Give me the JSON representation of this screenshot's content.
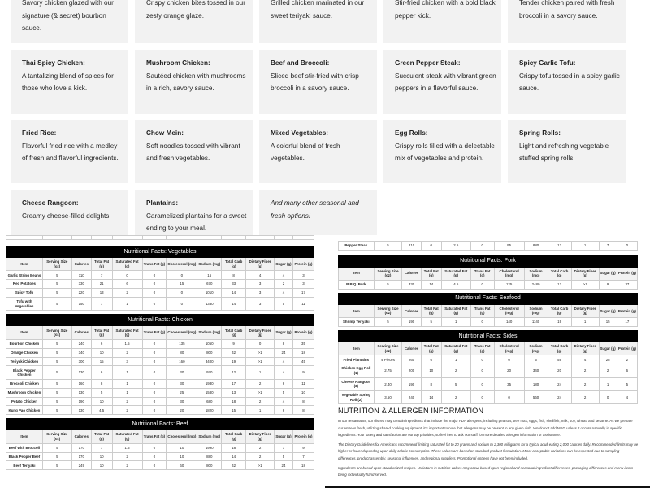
{
  "menu_cards": [
    {
      "title": "",
      "desc": "Savory chicken glazed with our signature (& secret) bourbon sauce."
    },
    {
      "title": "",
      "desc": "Crispy chicken bites tossed in our zesty orange glaze."
    },
    {
      "title": "",
      "desc": "Grilled chicken marinated in our sweet teriyaki sauce."
    },
    {
      "title": "",
      "desc": "Stir-fried chicken with a bold black pepper kick."
    },
    {
      "title": "",
      "desc": "Tender chicken paired with fresh broccoli in a savory sauce."
    },
    {
      "title": "Thai Spicy Chicken:",
      "desc": "A tantalizing blend of spices for those who love a kick."
    },
    {
      "title": "Mushroom Chicken:",
      "desc": "Sautéed chicken with mushrooms in a rich, savory sauce."
    },
    {
      "title": "Beef and Broccoli:",
      "desc": "Sliced beef stir-fried with crisp broccoli in a savory sauce."
    },
    {
      "title": "Green Pepper Steak:",
      "desc": "Succulent steak with vibrant green peppers in a flavorful sauce."
    },
    {
      "title": "Spicy Garlic Tofu:",
      "desc": "Crispy tofu tossed in a spicy garlic sauce."
    },
    {
      "title": "Fried Rice:",
      "desc": "Flavorful fried rice with a medley of fresh and flavorful ingredients."
    },
    {
      "title": "Chow Mein:",
      "desc": "Soft noodles tossed with vibrant and fresh vegetables."
    },
    {
      "title": "Mixed Vegetables:",
      "desc": "A colorful blend of fresh vegetables."
    },
    {
      "title": "Egg Rolls:",
      "desc": "Crispy rolls filled with a delectable mix of vegetables and protein."
    },
    {
      "title": "Spring Rolls:",
      "desc": "Light and refreshing vegetable stuffed spring rolls."
    },
    {
      "title": "Cheese Rangoon:",
      "desc": "Creamy cheese-filled delights."
    },
    {
      "title": "Plantains:",
      "desc": "Caramelized plantains for a sweet ending to your meal."
    },
    {
      "title": "",
      "desc": "And many other seasonal and fresh options!",
      "italic": true
    }
  ],
  "headers": [
    "Item",
    "Serving Size (oz)",
    "Calories",
    "Total Fat (g)",
    "Saturated Fat (g)",
    "Trans Fat (g)",
    "Cholesterol (mg)",
    "Sodium (mg)",
    "Total Carb (g)",
    "Dietary Fiber (g)",
    "Sugar (g)",
    "Protein (g)"
  ],
  "partial_rows": {
    "left": [
      "",
      "",
      "",
      "",
      "",
      "",
      "",
      "",
      "",
      "",
      "",
      ""
    ],
    "right": [
      "Pepper Steak",
      "5",
      "210",
      "0",
      "2.5",
      "0",
      "95",
      "880",
      "13",
      "1",
      "7",
      "0"
    ]
  },
  "tables": {
    "vegetables": {
      "title": "Nutritional Facts: Vegetables",
      "rows": [
        [
          "Garlic String Beans",
          "5",
          "110",
          "7",
          "0",
          "0",
          "0",
          "16",
          "8",
          "4",
          "4",
          "3"
        ],
        [
          "Red Potatoes",
          "5",
          "330",
          "21",
          "6",
          "0",
          "15",
          "670",
          "33",
          "3",
          "2",
          "3"
        ],
        [
          "Spicy Tofu",
          "5",
          "220",
          "13",
          "2",
          "0",
          "0",
          "1010",
          "14",
          "3",
          "4",
          "17"
        ],
        [
          "Tofu with Vegetables",
          "5",
          "150",
          "7",
          "1",
          "0",
          "0",
          "1330",
          "14",
          "3",
          "5",
          "11"
        ]
      ]
    },
    "chicken": {
      "title": "Nutritional Facts: Chicken",
      "rows": [
        [
          "Bourbon Chicken",
          "5",
          "240",
          "6",
          "1.5",
          "0",
          "135",
          "1050",
          "9",
          "0",
          "8",
          "35"
        ],
        [
          "Orange Chicken",
          "5",
          "340",
          "10",
          "2",
          "0",
          "80",
          "800",
          "42",
          ">1",
          "24",
          "18"
        ],
        [
          "Teriyaki Chicken",
          "5",
          "300",
          "15",
          "3",
          "0",
          "160",
          "3400",
          "19",
          ">1",
          "4",
          "45"
        ],
        [
          "Black Pepper Chicken",
          "5",
          "130",
          "6",
          "1",
          "0",
          "30",
          "970",
          "12",
          "1",
          "4",
          "9"
        ],
        [
          "Broccoli Chicken",
          "5",
          "160",
          "8",
          "1",
          "0",
          "30",
          "1930",
          "17",
          "2",
          "6",
          "11"
        ],
        [
          "Mushroom Chicken",
          "5",
          "130",
          "5",
          "1",
          "0",
          "25",
          "1580",
          "13",
          ">1",
          "5",
          "10"
        ],
        [
          "Potato Chicken",
          "5",
          "190",
          "10",
          "2",
          "0",
          "30",
          "680",
          "18",
          "2",
          "4",
          "8"
        ],
        [
          "Kung Pao Chicken",
          "5",
          "130",
          "4.5",
          "2",
          "0",
          "20",
          "1820",
          "15",
          "1",
          "6",
          "8"
        ]
      ]
    },
    "beef": {
      "title": "Nutritional Facts: Beef",
      "rows": [
        [
          "Beef with Broccoli",
          "5",
          "170",
          "7",
          "1.5",
          "0",
          "10",
          "1990",
          "18",
          "2",
          "7",
          "9"
        ],
        [
          "Black Pepper Beef",
          "5",
          "170",
          "10",
          "2",
          "0",
          "10",
          "880",
          "14",
          "2",
          "5",
          "7"
        ],
        [
          "Beef Teriyaki",
          "5",
          "249",
          "10",
          "2",
          "0",
          "60",
          "800",
          "42",
          ">1",
          "24",
          "18"
        ]
      ]
    },
    "pork": {
      "title": "Nutritional Facts: Pork",
      "rows": [
        [
          "B.B.Q. Pork",
          "5",
          "330",
          "14",
          "4.5",
          "0",
          "125",
          "2480",
          "12",
          ">1",
          "9",
          "37"
        ]
      ]
    },
    "seafood": {
      "title": "Nutritional Facts: Seafood",
      "rows": [
        [
          "Shrimp Teriyaki",
          "5",
          "190",
          "5",
          "1",
          "0",
          "140",
          "1140",
          "19",
          "1",
          "15",
          "17"
        ]
      ]
    },
    "sides": {
      "title": "Nutritional Facts: Sides",
      "rows": [
        [
          "Fried Plantains",
          "4 Pieces",
          "260",
          "6",
          "1",
          "0",
          "0",
          "5",
          "59",
          "4",
          "28",
          "2"
        ],
        [
          "Chicken Egg Roll (1)",
          "2.75",
          "200",
          "10",
          "2",
          "0",
          "20",
          "340",
          "20",
          "2",
          "2",
          "6"
        ],
        [
          "Cheese Rangoon (3)",
          "2.40",
          "190",
          "8",
          "5",
          "0",
          "35",
          "180",
          "24",
          "2",
          "1",
          "5"
        ],
        [
          "Vegetable Spring Roll (2)",
          "3.50",
          "240",
          "14",
          "2",
          "0",
          "0",
          "560",
          "24",
          "2",
          "0",
          "4"
        ]
      ]
    }
  },
  "info": {
    "heading": "NUTRITION & ALLERGEN INFORMATION",
    "p1": "In our restaurants, our dishes may contain ingredients that include the major FDA allergens, including peanuts, tree nuts, eggs, fish, shellfish, milk, soy, wheat, and sesame. As we prepare our entrees fresh, utilizing shared cooking equipment, it's important to note that allergens may be present in any given dish. We do not add MSG unless it occurs naturally in specific ingredients. Your safety and satisfaction are our top priorities, so feel free to ask our staff for more detailed allergen information or assistance.",
    "p2": "The Dietary Guidelines for Americans recommend limiting saturated fat to 20 grams and sodium to 2,300 milligrams for a typical adult eating 2,000 calories daily. Recommended limits may be higher or lower depending upon daily calorie consumption. These values are based on standard product formulation. Minor acceptable variations can be expected due to sampling differences, product assembly, seasonal influences, and regional suppliers. Promotional entrees have not been included.",
    "p3": "Ingredients are based upon standardized recipes. Variations in nutrition values may occur based upon regional and seasonal ingredient differences, packaging differences and menu items being individually hand served."
  },
  "colors": {
    "card_bg": "#f2f2f2",
    "table_title_bg": "#000000",
    "table_header_bg": "#f2f2f2"
  }
}
